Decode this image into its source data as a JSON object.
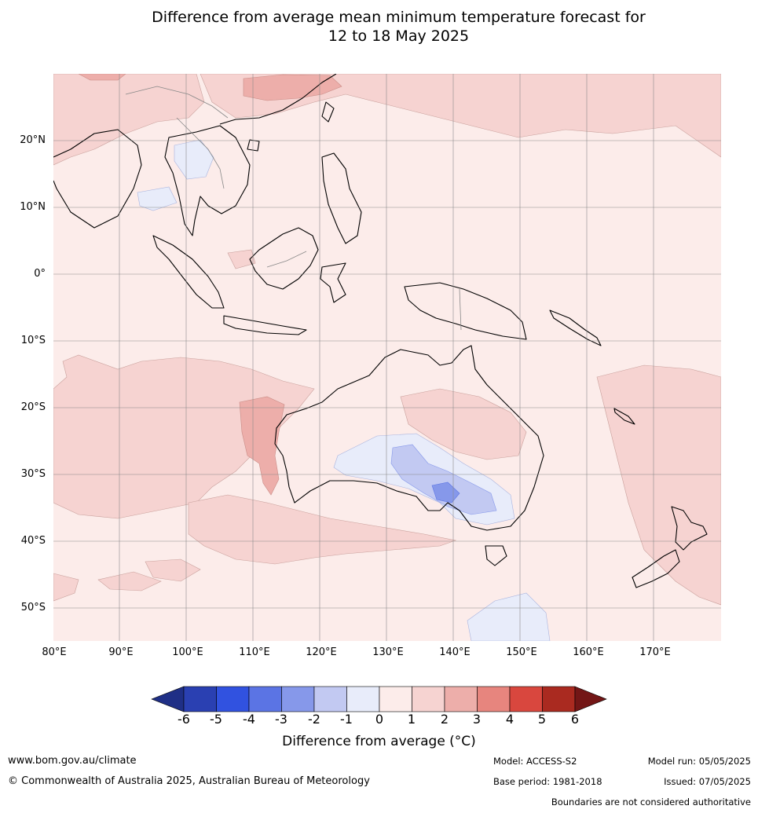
{
  "title_line1": "Difference from average mean minimum temperature forecast for",
  "title_line2": "12 to 18 May 2025",
  "lat_labels": [
    "20°N",
    "10°N",
    "0°",
    "10°S",
    "20°S",
    "30°S",
    "40°S",
    "50°S"
  ],
  "lon_labels": [
    "80°E",
    "90°E",
    "100°E",
    "110°E",
    "120°E",
    "130°E",
    "140°E",
    "150°E",
    "160°E",
    "170°E"
  ],
  "colorbar": {
    "ticks": [
      "-6",
      "-5",
      "-4",
      "-3",
      "-2",
      "-1",
      "0",
      "1",
      "2",
      "3",
      "4",
      "5",
      "6"
    ],
    "colors": [
      "#1f2f86",
      "#2a40b2",
      "#3152e0",
      "#5b74e4",
      "#8698ea",
      "#c2c9f2",
      "#e8ecfa",
      "#fcecea",
      "#f6d3d1",
      "#edaeaa",
      "#e7857e",
      "#d9473e",
      "#aa2a20",
      "#731616"
    ],
    "label": "Difference from average (°C)"
  },
  "footer": {
    "website": "www.bom.gov.au/climate",
    "copyright": "© Commonwealth of Australia 2025, Australian Bureau of Meteorology",
    "model": "Model: ACCESS-S2",
    "base_period": "Base period: 1981-2018",
    "model_run": "Model run: 05/05/2025",
    "issued": "Issued: 07/05/2025",
    "disclaimer": "Boundaries are not considered authoritative"
  }
}
